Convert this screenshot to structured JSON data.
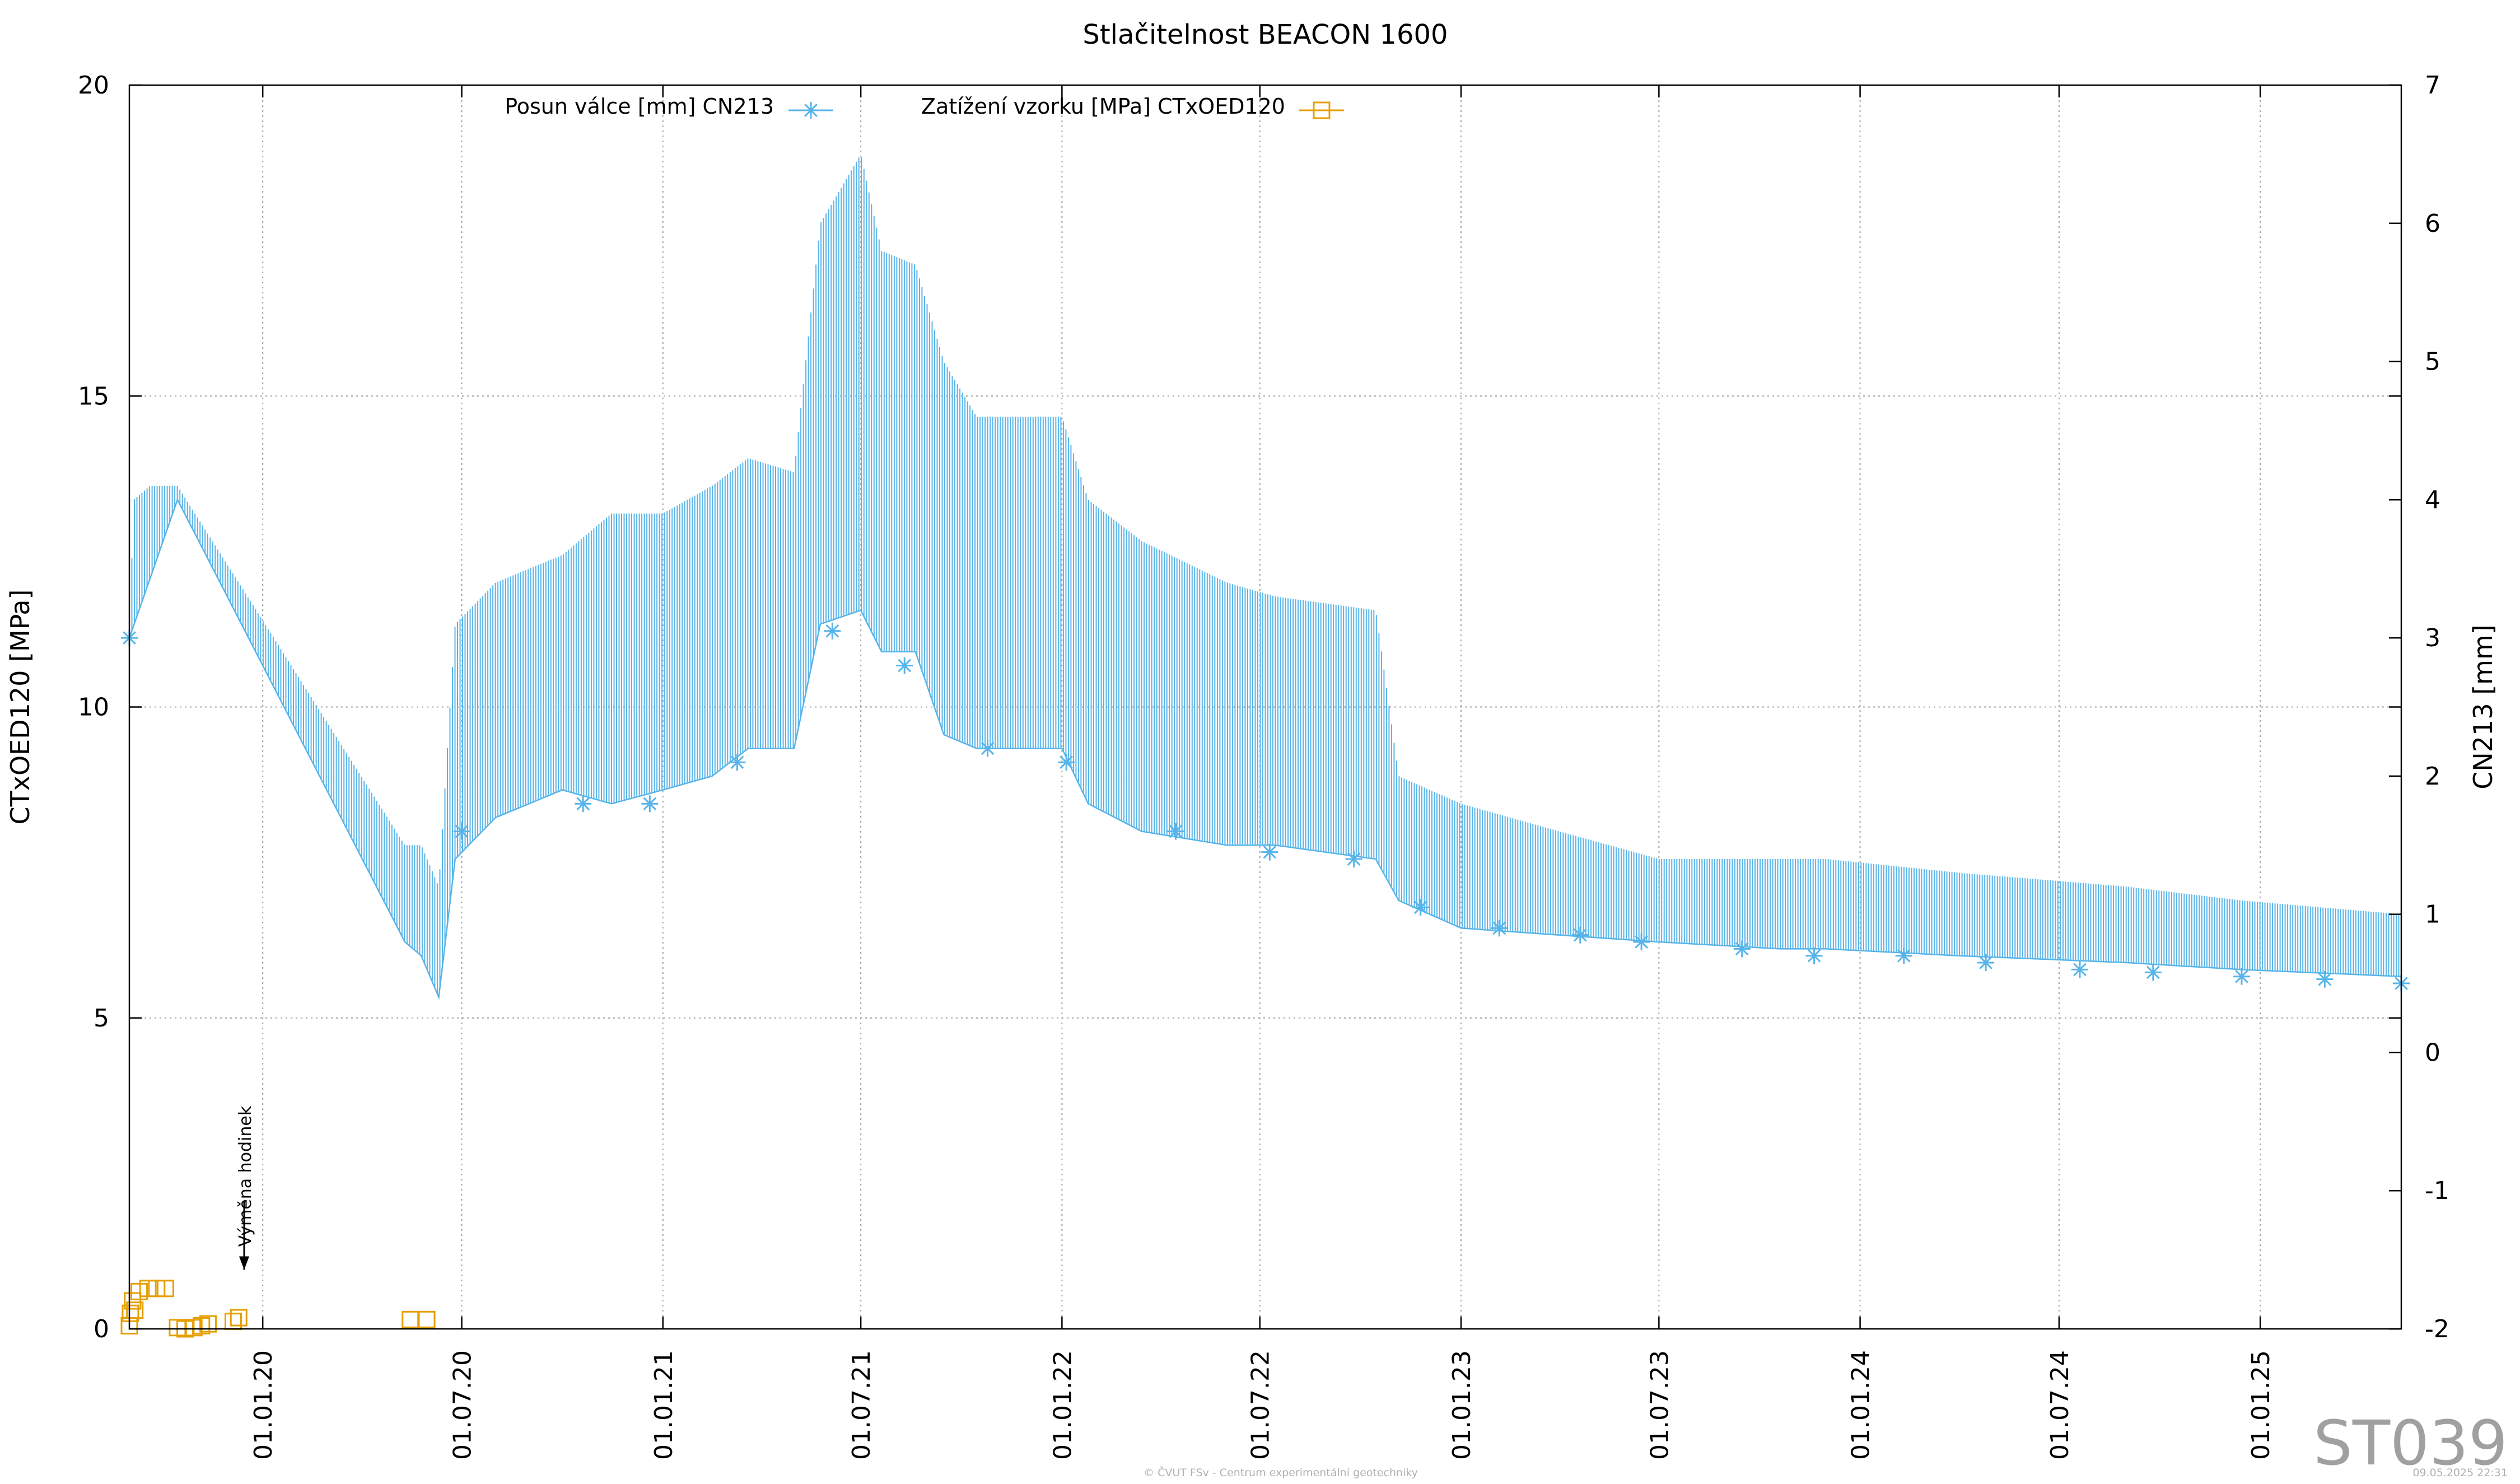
{
  "chart_data": {
    "type": "line",
    "title": "Stlačitelnost BEACON 1600",
    "ylabel_left": "CTxOED120 [MPa]",
    "ylabel_right": "CN213 [mm]",
    "y_left_range": [
      0,
      20
    ],
    "y_left_ticks": [
      "0",
      "5",
      "10",
      "15",
      "20"
    ],
    "y_right_range": [
      -2,
      7
    ],
    "y_right_ticks": [
      "-2",
      "-1",
      "0",
      "1",
      "2",
      "3",
      "4",
      "5",
      "6",
      "7"
    ],
    "x_range": [
      "2019-09-01",
      "2025-05-10"
    ],
    "x_ticks": [
      "01.01.20",
      "01.07.20",
      "01.01.21",
      "01.07.21",
      "01.01.22",
      "01.07.22",
      "01.01.23",
      "01.07.23",
      "01.01.24",
      "01.07.24",
      "01.01.25"
    ],
    "x_tick_dates": [
      "2020-01-01",
      "2020-07-01",
      "2021-01-01",
      "2021-07-01",
      "2022-01-01",
      "2022-07-01",
      "2023-01-01",
      "2023-07-01",
      "2024-01-01",
      "2024-07-01",
      "2025-01-01"
    ],
    "grid": true,
    "legend_placement": "top",
    "colors": {
      "displacement": "#56b4e9",
      "load": "#e69f00",
      "grid": "#a0a0a0"
    },
    "series": [
      {
        "name": "Posun válce [mm] CN213",
        "axis": "right",
        "style": "line-with-star-markers",
        "upper_envelope": [
          [
            "2019-09-01",
            3.0
          ],
          [
            "2019-09-05",
            4.0
          ],
          [
            "2019-09-20",
            4.1
          ],
          [
            "2019-10-15",
            4.1
          ],
          [
            "2020-05-10",
            1.5
          ],
          [
            "2020-05-25",
            1.5
          ],
          [
            "2020-06-10",
            1.2
          ],
          [
            "2020-06-25",
            3.1
          ],
          [
            "2020-08-01",
            3.4
          ],
          [
            "2020-10-01",
            3.6
          ],
          [
            "2020-11-15",
            3.9
          ],
          [
            "2021-01-01",
            3.9
          ],
          [
            "2021-02-15",
            4.1
          ],
          [
            "2021-03-20",
            4.3
          ],
          [
            "2021-05-01",
            4.2
          ],
          [
            "2021-05-25",
            6.0
          ],
          [
            "2021-07-01",
            6.5
          ],
          [
            "2021-07-20",
            5.8
          ],
          [
            "2021-08-20",
            5.7
          ],
          [
            "2021-09-15",
            5.0
          ],
          [
            "2021-10-15",
            4.6
          ],
          [
            "2022-01-01",
            4.6
          ],
          [
            "2022-01-25",
            4.0
          ],
          [
            "2022-03-15",
            3.7
          ],
          [
            "2022-06-01",
            3.4
          ],
          [
            "2022-07-15",
            3.3
          ],
          [
            "2022-10-15",
            3.2
          ],
          [
            "2022-11-05",
            2.0
          ],
          [
            "2023-01-01",
            1.8
          ],
          [
            "2023-04-01",
            1.6
          ],
          [
            "2023-07-01",
            1.4
          ],
          [
            "2023-10-20",
            1.4
          ],
          [
            "2023-12-01",
            1.4
          ],
          [
            "2024-04-01",
            1.3
          ],
          [
            "2024-09-01",
            1.2
          ],
          [
            "2024-12-15",
            1.1
          ],
          [
            "2025-05-10",
            1.0
          ]
        ],
        "lower_envelope": [
          [
            "2019-09-01",
            3.0
          ],
          [
            "2019-10-15",
            4.0
          ],
          [
            "2020-05-10",
            0.8
          ],
          [
            "2020-05-25",
            0.7
          ],
          [
            "2020-06-10",
            0.4
          ],
          [
            "2020-06-25",
            1.4
          ],
          [
            "2020-08-01",
            1.7
          ],
          [
            "2020-10-01",
            1.9
          ],
          [
            "2020-11-15",
            1.8
          ],
          [
            "2021-01-01",
            1.9
          ],
          [
            "2021-02-15",
            2.0
          ],
          [
            "2021-03-20",
            2.2
          ],
          [
            "2021-05-01",
            2.2
          ],
          [
            "2021-05-25",
            3.1
          ],
          [
            "2021-07-01",
            3.2
          ],
          [
            "2021-07-20",
            2.9
          ],
          [
            "2021-08-20",
            2.9
          ],
          [
            "2021-09-15",
            2.3
          ],
          [
            "2021-10-15",
            2.2
          ],
          [
            "2022-01-01",
            2.2
          ],
          [
            "2022-01-25",
            1.8
          ],
          [
            "2022-03-15",
            1.6
          ],
          [
            "2022-06-01",
            1.5
          ],
          [
            "2022-07-15",
            1.5
          ],
          [
            "2022-10-15",
            1.4
          ],
          [
            "2022-11-05",
            1.1
          ],
          [
            "2023-01-01",
            0.9
          ],
          [
            "2023-04-01",
            0.85
          ],
          [
            "2023-07-01",
            0.8
          ],
          [
            "2023-10-20",
            0.75
          ],
          [
            "2023-12-01",
            0.75
          ],
          [
            "2024-04-01",
            0.7
          ],
          [
            "2024-09-01",
            0.65
          ],
          [
            "2024-12-15",
            0.6
          ],
          [
            "2025-05-10",
            0.55
          ]
        ],
        "markers": [
          [
            "2019-09-01",
            3.0
          ],
          [
            "2020-07-01",
            1.6
          ],
          [
            "2020-10-20",
            1.8
          ],
          [
            "2020-12-20",
            1.8
          ],
          [
            "2021-03-10",
            2.1
          ],
          [
            "2021-06-05",
            3.05
          ],
          [
            "2021-08-10",
            2.8
          ],
          [
            "2021-10-25",
            2.2
          ],
          [
            "2022-01-05",
            2.1
          ],
          [
            "2022-04-15",
            1.6
          ],
          [
            "2022-07-10",
            1.45
          ],
          [
            "2022-09-25",
            1.4
          ],
          [
            "2022-11-25",
            1.05
          ],
          [
            "2023-02-05",
            0.9
          ],
          [
            "2023-04-20",
            0.85
          ],
          [
            "2023-06-15",
            0.8
          ],
          [
            "2023-09-15",
            0.75
          ],
          [
            "2023-11-20",
            0.7
          ],
          [
            "2024-02-10",
            0.7
          ],
          [
            "2024-04-25",
            0.65
          ],
          [
            "2024-07-20",
            0.6
          ],
          [
            "2024-09-25",
            0.58
          ],
          [
            "2024-12-15",
            0.55
          ],
          [
            "2025-03-01",
            0.53
          ],
          [
            "2025-05-10",
            0.5
          ]
        ]
      },
      {
        "name": "Zatížení vzorku [MPa] CTxOED120",
        "axis": "left",
        "style": "square-markers",
        "points": [
          [
            "2019-09-01",
            0.05
          ],
          [
            "2019-09-02",
            0.25
          ],
          [
            "2019-09-04",
            0.45
          ],
          [
            "2019-09-06",
            0.3
          ],
          [
            "2019-09-10",
            0.6
          ],
          [
            "2019-09-18",
            0.65
          ],
          [
            "2019-09-26",
            0.65
          ],
          [
            "2019-10-04",
            0.65
          ],
          [
            "2019-10-15",
            0.02
          ],
          [
            "2019-10-22",
            0.0
          ],
          [
            "2019-10-30",
            0.02
          ],
          [
            "2019-11-06",
            0.05
          ],
          [
            "2019-11-12",
            0.08
          ],
          [
            "2019-12-05",
            0.12
          ],
          [
            "2019-12-10",
            0.18
          ],
          [
            "2020-05-15",
            0.15
          ],
          [
            "2020-05-30",
            0.15
          ]
        ]
      }
    ],
    "annotations": [
      {
        "text": "Výměna hodinek",
        "at": [
          "2019-12-15",
          1.0
        ],
        "arrow": "down"
      }
    ]
  },
  "station_label": "ST039",
  "footer_center": "© ČVUT FSv - Centrum experimentální geotechniky",
  "footer_right": "09.05.2025 22:31"
}
